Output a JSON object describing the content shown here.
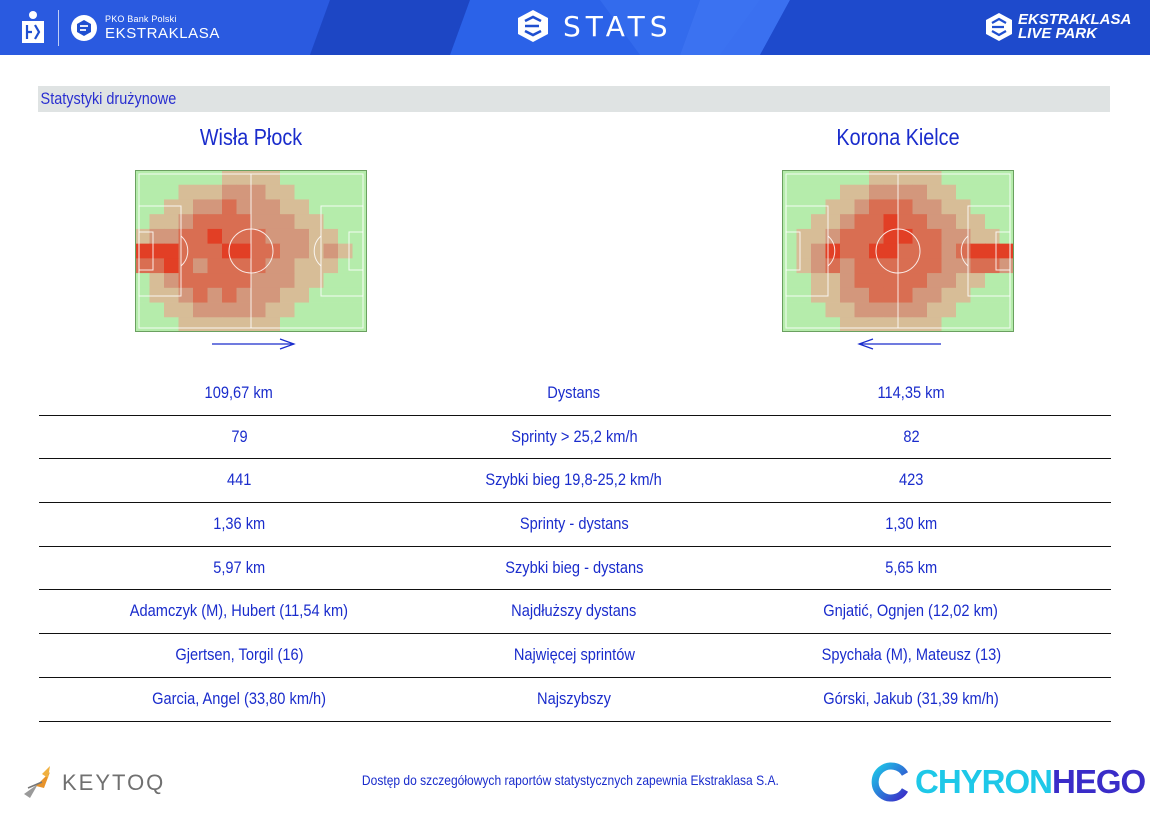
{
  "header": {
    "pko_small": "PKO Bank Polski",
    "league": "EKSTRAKLASA",
    "stats_title": "STATS",
    "live_park_line1": "EKSTRAKLASA",
    "live_park_line2": "LIVE PARK",
    "colors": {
      "bar": "#1f4fd0",
      "light": "#3b6ff0",
      "dark": "#1840b0"
    }
  },
  "section": {
    "title": "Statystyki drużynowe"
  },
  "teams": {
    "home": {
      "name": "Wisła Płock",
      "attack_direction": "right"
    },
    "away": {
      "name": "Korona Kielce",
      "attack_direction": "left"
    }
  },
  "heatmaps": {
    "cols": 16,
    "rows": 11,
    "home_grid": [
      [
        0,
        0,
        0,
        0,
        0,
        0,
        1,
        1,
        1,
        1,
        0,
        0,
        0,
        0,
        0,
        0
      ],
      [
        0,
        0,
        0,
        1,
        1,
        1,
        2,
        2,
        2,
        1,
        1,
        0,
        0,
        0,
        0,
        0
      ],
      [
        0,
        0,
        1,
        1,
        2,
        2,
        3,
        2,
        2,
        2,
        1,
        1,
        0,
        0,
        0,
        0
      ],
      [
        0,
        1,
        1,
        2,
        3,
        3,
        3,
        3,
        2,
        2,
        2,
        1,
        1,
        0,
        0,
        0
      ],
      [
        1,
        2,
        2,
        3,
        3,
        4,
        3,
        3,
        3,
        2,
        2,
        2,
        1,
        1,
        0,
        0
      ],
      [
        4,
        4,
        4,
        3,
        3,
        3,
        4,
        4,
        3,
        3,
        2,
        2,
        1,
        2,
        1,
        0
      ],
      [
        3,
        3,
        4,
        3,
        2,
        3,
        3,
        3,
        3,
        2,
        2,
        1,
        1,
        1,
        0,
        0
      ],
      [
        0,
        1,
        2,
        3,
        3,
        3,
        3,
        3,
        2,
        2,
        2,
        1,
        1,
        0,
        0,
        0
      ],
      [
        0,
        1,
        1,
        2,
        3,
        2,
        3,
        2,
        2,
        2,
        1,
        1,
        0,
        0,
        0,
        0
      ],
      [
        0,
        0,
        1,
        1,
        2,
        2,
        2,
        2,
        2,
        1,
        1,
        0,
        0,
        0,
        0,
        0
      ],
      [
        0,
        0,
        0,
        1,
        1,
        1,
        1,
        1,
        1,
        1,
        0,
        0,
        0,
        0,
        0,
        0
      ]
    ],
    "away_grid": [
      [
        0,
        0,
        0,
        0,
        0,
        0,
        1,
        1,
        1,
        1,
        1,
        0,
        0,
        0,
        0,
        0
      ],
      [
        0,
        0,
        0,
        0,
        1,
        1,
        2,
        2,
        2,
        2,
        1,
        1,
        0,
        0,
        0,
        0
      ],
      [
        0,
        0,
        0,
        1,
        1,
        2,
        3,
        3,
        3,
        2,
        2,
        1,
        1,
        0,
        0,
        0
      ],
      [
        0,
        0,
        1,
        1,
        2,
        3,
        3,
        4,
        3,
        3,
        2,
        2,
        1,
        1,
        0,
        0
      ],
      [
        0,
        1,
        1,
        2,
        3,
        3,
        3,
        4,
        4,
        3,
        3,
        2,
        2,
        1,
        1,
        0
      ],
      [
        0,
        1,
        2,
        4,
        3,
        3,
        4,
        4,
        3,
        3,
        3,
        2,
        3,
        4,
        4,
        4
      ],
      [
        0,
        1,
        2,
        3,
        2,
        3,
        3,
        3,
        3,
        3,
        3,
        2,
        2,
        3,
        3,
        2
      ],
      [
        0,
        0,
        1,
        1,
        2,
        3,
        3,
        3,
        3,
        3,
        2,
        2,
        1,
        1,
        0,
        0
      ],
      [
        0,
        0,
        1,
        1,
        2,
        2,
        3,
        3,
        3,
        2,
        2,
        1,
        1,
        0,
        0,
        0
      ],
      [
        0,
        0,
        0,
        1,
        1,
        2,
        2,
        2,
        2,
        2,
        1,
        1,
        0,
        0,
        0,
        0
      ],
      [
        0,
        0,
        0,
        0,
        1,
        1,
        1,
        1,
        1,
        1,
        1,
        0,
        0,
        0,
        0,
        0
      ]
    ],
    "palette": [
      "#b5ecab",
      "#d7bd97",
      "#d3977c",
      "#d96e52",
      "#e23f25"
    ]
  },
  "stats": [
    {
      "label": "Dystans",
      "home": "109,67 km",
      "away": "114,35 km"
    },
    {
      "label": "Sprinty > 25,2 km/h",
      "home": "79",
      "away": "82"
    },
    {
      "label": "Szybki bieg 19,8-25,2 km/h",
      "home": "441",
      "away": "423"
    },
    {
      "label": "Sprinty - dystans",
      "home": "1,36 km",
      "away": "1,30 km"
    },
    {
      "label": "Szybki bieg - dystans",
      "home": "5,97 km",
      "away": "5,65 km"
    },
    {
      "label": "Najdłuższy dystans",
      "home": "Adamczyk (M), Hubert (11,54 km)",
      "away": "Gnjatić, Ognjen (12,02 km)"
    },
    {
      "label": "Najwięcej sprintów",
      "home": "Gjertsen, Torgil (16)",
      "away": "Spychała (M), Mateusz (13)"
    },
    {
      "label": "Najszybszy",
      "home": "Garcia, Angel (33,80 km/h)",
      "away": "Górski, Jakub (31,39 km/h)"
    }
  ],
  "footer": {
    "keytoq": "KEYTOQ",
    "note": "Dostęp do szczegółowych raportów statystycznych zapewnia Ekstraklasa S.A.",
    "chyron_part1": "CHYRON",
    "chyron_part2": "HEGO"
  }
}
